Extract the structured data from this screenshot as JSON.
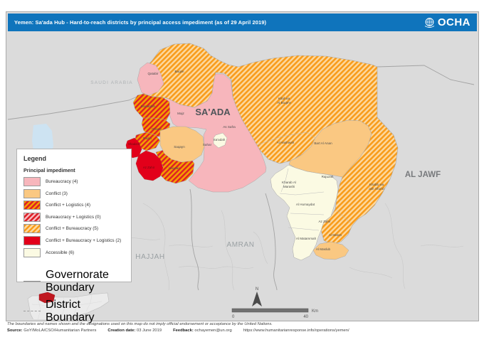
{
  "header": {
    "title": "Yemen: Sa'ada Hub - Hard-to-reach districts by principal access impediment (as of 29 April 2019)",
    "org": "OCHA"
  },
  "colors": {
    "header_blue": "#0F74BC",
    "bureaucracy": "#F7B6BC",
    "conflict": "#FAC882",
    "conflict_logistics_stripes": [
      "#F59E00",
      "#DE1F26"
    ],
    "bureaucracy_logistics_stripes": [
      "#F7B6BC",
      "#DE1F26"
    ],
    "conflict_bureaucracy_stripes": [
      "#F89C1B",
      "#FDD9A0"
    ],
    "conflict_bureaucracy_logistics": "#E2001A",
    "accessible": "#FBFAE3",
    "map_background": "#DBDBDB",
    "sea": "#CDE3F2",
    "inset_highlight": "#C01820"
  },
  "legend": {
    "title": "Legend",
    "subtitle": "Principal impediment",
    "items": [
      {
        "label": "Bureaucracy (4)",
        "swatch": "bureaucracy"
      },
      {
        "label": "Conflict (3)",
        "swatch": "conflict"
      },
      {
        "label": "Conflict + Logistics (4)",
        "swatch": "conflict-logistics"
      },
      {
        "label": "Bureaucracy + Logistics (0)",
        "swatch": "bureaucracy-logistics"
      },
      {
        "label": "Conflict + Bureaucracy (5)",
        "swatch": "conflict-bureaucracy"
      },
      {
        "label": "Conflict + Bureaucracy + Logistics (2)",
        "swatch": "conflict-bureaucracy-logistics"
      },
      {
        "label": "Accessible (6)",
        "swatch": "accessible"
      }
    ],
    "boundaries": [
      {
        "label": "Governorate Boundary",
        "style": "solid"
      },
      {
        "label": "District Boundary",
        "style": "dashed"
      }
    ]
  },
  "map": {
    "labels": {
      "saudi_arabia": "SAUDI ARABIA",
      "saada_gov": "SA'ADA",
      "al_jawf_gov": "AL JAWF",
      "amran_gov": "AMRAN",
      "hajjah_gov": "HAJJAH",
      "qatabir": "Qatabir",
      "baqim": "Baqim",
      "monabbih": "Monabbih",
      "majz": "Majz",
      "ghamr": "Ghamr",
      "razih": "Razih",
      "shadaa": "Shada'a",
      "az_zahir_saada": "Az Zahir",
      "haydan": "Haydan",
      "saqayn": "Saqayn",
      "sahar": "Sahar",
      "as_safra": "As Safra",
      "saadah_city": "Sa'adah",
      "kitaf_1": "Kitaf wa",
      "kitaf_2": "Al Boqe'e",
      "al_hashwah": "Al Hashwah",
      "bart_al_anan": "Bart Al Anan",
      "khabb_1": "Khabb wa",
      "khabb_2": "ash Sha'af",
      "rajuzah": "Rajuzah",
      "kharab_1": "Kharab Al",
      "kharab_2": "Marashi",
      "al_humaydat": "Al Humaydat",
      "az_zahir_jawf": "Az Zahir",
      "al_matammah": "Al Matammah",
      "al_maton": "Al Maton",
      "al_maslub": "Al Maslub"
    }
  },
  "scale": {
    "start": "0",
    "end": "40",
    "unit": "Km",
    "north": "N"
  },
  "footer": {
    "disclaimer": "The boundaries and names shown and the designations used on this map do not imply official endorsement or acceptance by the United Nations.",
    "source_label": "Source:",
    "source": "GoY/MoLA/CSO/Humanitarian Partners",
    "creation_label": "Creation date:",
    "creation": "03 June 2019",
    "feedback_label": "Feedback:",
    "feedback": "ochayemen@un.org",
    "url": "https://www.humanitarianresponse.info/operations/yemen/"
  }
}
